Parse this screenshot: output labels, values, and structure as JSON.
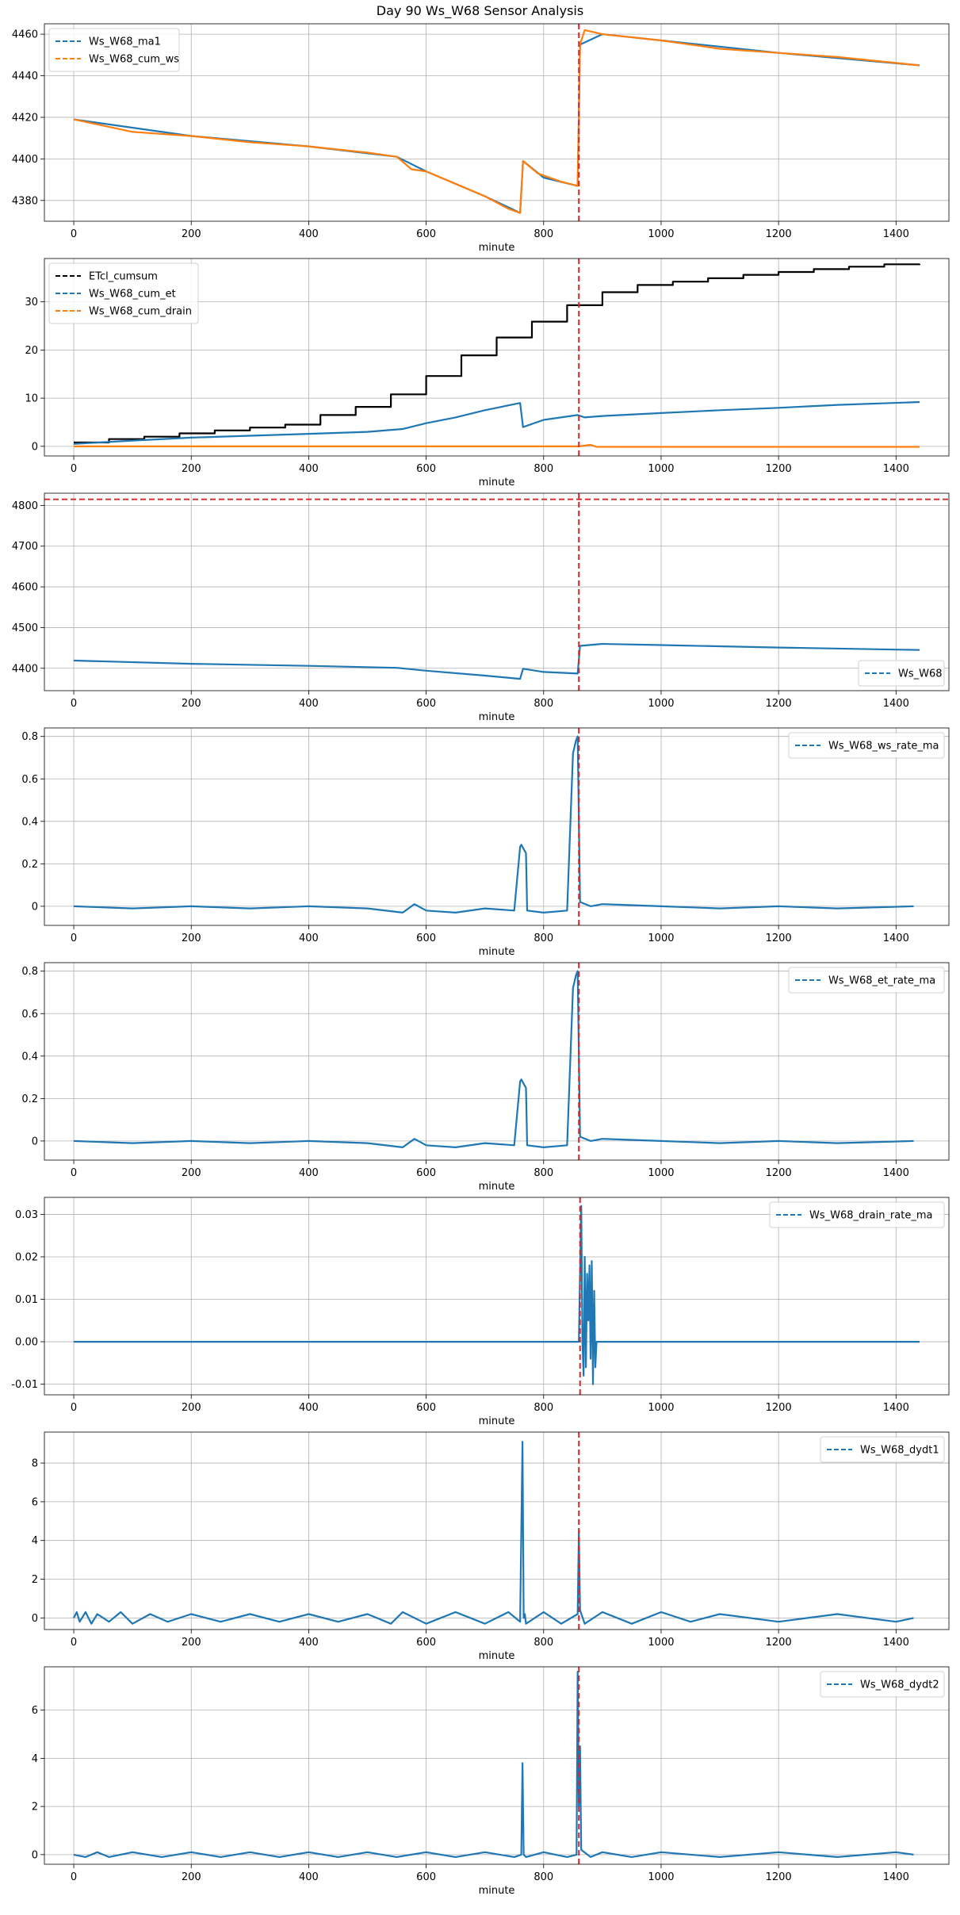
{
  "figure": {
    "title": "Day 90 Ws_W68 Sensor Analysis"
  },
  "chart_data": [
    {
      "type": "line",
      "xlabel": "minute",
      "ylabel": "",
      "xlim": [
        -50,
        1490
      ],
      "ylim": [
        4370,
        4465
      ],
      "xticks": [
        0,
        200,
        400,
        600,
        800,
        1000,
        1200,
        1400
      ],
      "yticks": [
        4380,
        4400,
        4420,
        4440,
        4460
      ],
      "grid": true,
      "legend_loc": "upper-left",
      "vlines": [
        {
          "x": 860,
          "color": "#d62728"
        }
      ],
      "hlines": [],
      "series": [
        {
          "name": "Ws_W68_ma1",
          "color": "#1f77b4",
          "style": "dashed",
          "x": [
            0,
            200,
            400,
            550,
            600,
            700,
            760,
            765,
            800,
            858,
            862,
            900,
            1000,
            1200,
            1440
          ],
          "y": [
            4419,
            4411,
            4406,
            4401,
            4394,
            4382,
            4374,
            4399,
            4391,
            4387,
            4455,
            4460,
            4457,
            4451,
            4445
          ]
        },
        {
          "name": "Ws_W68_cum_ws",
          "color": "#ff7f0e",
          "style": "dashed",
          "x": [
            0,
            50,
            100,
            200,
            300,
            400,
            500,
            550,
            575,
            600,
            650,
            700,
            740,
            760,
            765,
            790,
            830,
            858,
            862,
            870,
            900,
            1000,
            1100,
            1200,
            1300,
            1440
          ],
          "y": [
            4419,
            4416,
            4413,
            4411,
            4408,
            4406,
            4403,
            4401,
            4395,
            4394,
            4388,
            4382,
            4376,
            4374,
            4399,
            4393,
            4389,
            4387,
            4455,
            4462,
            4460,
            4457,
            4453,
            4451,
            4449,
            4445
          ]
        }
      ]
    },
    {
      "type": "line",
      "xlabel": "minute",
      "ylabel": "",
      "xlim": [
        -50,
        1490
      ],
      "ylim": [
        -2,
        39
      ],
      "xticks": [
        0,
        200,
        400,
        600,
        800,
        1000,
        1200,
        1400
      ],
      "yticks": [
        0,
        10,
        20,
        30
      ],
      "grid": true,
      "legend_loc": "upper-left",
      "vlines": [
        {
          "x": 860,
          "color": "#d62728"
        }
      ],
      "hlines": [],
      "series": [
        {
          "name": "ETcl_cumsum",
          "color": "#000000",
          "style": "dashed",
          "step": true,
          "x": [
            0,
            60,
            120,
            180,
            240,
            300,
            360,
            420,
            480,
            540,
            600,
            660,
            720,
            780,
            840,
            900,
            960,
            1020,
            1080,
            1140,
            1200,
            1260,
            1320,
            1380,
            1440
          ],
          "y": [
            0.8,
            1.5,
            2.0,
            2.7,
            3.3,
            3.9,
            4.5,
            6.5,
            8.2,
            10.8,
            14.6,
            18.9,
            22.6,
            25.9,
            29.3,
            32.0,
            33.5,
            34.2,
            34.9,
            35.6,
            36.2,
            36.8,
            37.3,
            37.8,
            37.9
          ]
        },
        {
          "name": "Ws_W68_cum_et",
          "color": "#1f77b4",
          "style": "dashed",
          "x": [
            0,
            100,
            200,
            300,
            400,
            500,
            560,
            600,
            650,
            700,
            760,
            765,
            800,
            858,
            870,
            900,
            1000,
            1100,
            1200,
            1300,
            1440
          ],
          "y": [
            0.5,
            1.2,
            1.8,
            2.2,
            2.6,
            3.0,
            3.6,
            4.8,
            6.0,
            7.5,
            9.0,
            4.0,
            5.5,
            6.5,
            6.0,
            6.3,
            6.9,
            7.5,
            8.0,
            8.6,
            9.2
          ]
        },
        {
          "name": "Ws_W68_cum_drain",
          "color": "#ff7f0e",
          "style": "dashed",
          "x": [
            0,
            860,
            880,
            890,
            1440
          ],
          "y": [
            0.0,
            0.0,
            0.3,
            -0.1,
            -0.1
          ]
        }
      ]
    },
    {
      "type": "line",
      "xlabel": "minute",
      "ylabel": "",
      "xlim": [
        -50,
        1490
      ],
      "ylim": [
        4345,
        4830
      ],
      "xticks": [
        0,
        200,
        400,
        600,
        800,
        1000,
        1200,
        1400
      ],
      "yticks": [
        4400,
        4500,
        4600,
        4700,
        4800
      ],
      "grid": true,
      "legend_loc": "lower-right",
      "vlines": [
        {
          "x": 860,
          "color": "#d62728"
        }
      ],
      "hlines": [
        {
          "y": 4815,
          "color": "#d62728"
        }
      ],
      "series": [
        {
          "name": "Ws_W68",
          "color": "#1f77b4",
          "style": "dashed",
          "x": [
            0,
            200,
            400,
            550,
            600,
            700,
            760,
            765,
            800,
            858,
            862,
            900,
            1000,
            1200,
            1440
          ],
          "y": [
            4419,
            4411,
            4406,
            4401,
            4394,
            4382,
            4374,
            4399,
            4391,
            4387,
            4455,
            4460,
            4457,
            4451,
            4445
          ]
        }
      ]
    },
    {
      "type": "line",
      "xlabel": "minute",
      "ylabel": "",
      "xlim": [
        -50,
        1490
      ],
      "ylim": [
        -0.09,
        0.84
      ],
      "xticks": [
        0,
        200,
        400,
        600,
        800,
        1000,
        1200,
        1400
      ],
      "yticks": [
        0.0,
        0.2,
        0.4,
        0.6,
        0.8
      ],
      "grid": true,
      "legend_loc": "upper-right",
      "vlines": [
        {
          "x": 860,
          "color": "#d62728"
        }
      ],
      "hlines": [],
      "series": [
        {
          "name": "Ws_W68_ws_rate_ma",
          "color": "#1f77b4",
          "style": "dashed",
          "x": [
            0,
            100,
            200,
            300,
            400,
            500,
            560,
            580,
            600,
            650,
            700,
            750,
            760,
            762,
            770,
            772,
            800,
            840,
            850,
            855,
            858,
            862,
            880,
            900,
            1000,
            1100,
            1200,
            1300,
            1430
          ],
          "y": [
            0.0,
            -0.01,
            0.0,
            -0.01,
            0.0,
            -0.01,
            -0.03,
            0.01,
            -0.02,
            -0.03,
            -0.01,
            -0.02,
            0.28,
            0.29,
            0.25,
            -0.02,
            -0.03,
            -0.02,
            0.72,
            0.78,
            0.8,
            0.02,
            0.0,
            0.01,
            0.0,
            -0.01,
            0.0,
            -0.01,
            0.0
          ]
        }
      ]
    },
    {
      "type": "line",
      "xlabel": "minute",
      "ylabel": "",
      "xlim": [
        -50,
        1490
      ],
      "ylim": [
        -0.09,
        0.84
      ],
      "xticks": [
        0,
        200,
        400,
        600,
        800,
        1000,
        1200,
        1400
      ],
      "yticks": [
        0.0,
        0.2,
        0.4,
        0.6,
        0.8
      ],
      "grid": true,
      "legend_loc": "upper-right",
      "vlines": [
        {
          "x": 860,
          "color": "#d62728"
        }
      ],
      "hlines": [],
      "series": [
        {
          "name": "Ws_W68_et_rate_ma",
          "color": "#1f77b4",
          "style": "dashed",
          "x": [
            0,
            100,
            200,
            300,
            400,
            500,
            560,
            580,
            600,
            650,
            700,
            750,
            760,
            762,
            770,
            772,
            800,
            840,
            850,
            855,
            858,
            862,
            880,
            900,
            1000,
            1100,
            1200,
            1300,
            1430
          ],
          "y": [
            0.0,
            -0.01,
            0.0,
            -0.01,
            0.0,
            -0.01,
            -0.03,
            0.01,
            -0.02,
            -0.03,
            -0.01,
            -0.02,
            0.28,
            0.29,
            0.25,
            -0.02,
            -0.03,
            -0.02,
            0.72,
            0.78,
            0.8,
            0.02,
            0.0,
            0.01,
            0.0,
            -0.01,
            0.0,
            -0.01,
            0.0
          ]
        }
      ]
    },
    {
      "type": "line",
      "xlabel": "minute",
      "ylabel": "",
      "xlim": [
        -50,
        1490
      ],
      "ylim": [
        -0.0125,
        0.034
      ],
      "xticks": [
        0,
        200,
        400,
        600,
        800,
        1000,
        1200,
        1400
      ],
      "yticks": [
        -0.01,
        0.0,
        0.01,
        0.02,
        0.03
      ],
      "ytick_labels": [
        "-0.01",
        "0.00",
        "0.01",
        "0.02",
        "0.03"
      ],
      "grid": true,
      "legend_loc": "upper-right",
      "vlines": [
        {
          "x": 862,
          "color": "#d62728"
        }
      ],
      "hlines": [],
      "series": [
        {
          "name": "Ws_W68_drain_rate_ma",
          "color": "#1f77b4",
          "style": "dashed",
          "x": [
            0,
            860,
            864,
            866,
            868,
            870,
            872,
            874,
            876,
            878,
            880,
            882,
            884,
            886,
            888,
            890,
            892,
            900,
            1440
          ],
          "y": [
            0.0,
            0.0,
            0.032,
            0.0,
            -0.008,
            0.02,
            -0.006,
            0.016,
            0.005,
            0.018,
            -0.004,
            0.019,
            -0.01,
            0.012,
            -0.006,
            0.0,
            0.0,
            0.0,
            0.0
          ]
        }
      ]
    },
    {
      "type": "line",
      "xlabel": "minute",
      "ylabel": "",
      "xlim": [
        -50,
        1490
      ],
      "ylim": [
        -0.6,
        9.6
      ],
      "xticks": [
        0,
        200,
        400,
        600,
        800,
        1000,
        1200,
        1400
      ],
      "yticks": [
        0,
        2,
        4,
        6,
        8
      ],
      "grid": true,
      "legend_loc": "upper-right",
      "vlines": [
        {
          "x": 860,
          "color": "#d62728"
        }
      ],
      "hlines": [],
      "series": [
        {
          "name": "Ws_W68_dydt1",
          "color": "#1f77b4",
          "style": "dashed",
          "x": [
            0,
            5,
            10,
            20,
            30,
            40,
            60,
            80,
            100,
            130,
            160,
            200,
            250,
            300,
            350,
            400,
            450,
            500,
            540,
            560,
            600,
            650,
            700,
            740,
            760,
            764,
            766,
            768,
            770,
            800,
            830,
            858,
            860,
            862,
            870,
            900,
            950,
            1000,
            1050,
            1100,
            1200,
            1300,
            1400,
            1430
          ],
          "y": [
            0.0,
            0.3,
            -0.2,
            0.3,
            -0.3,
            0.2,
            -0.2,
            0.3,
            -0.3,
            0.2,
            -0.2,
            0.2,
            -0.2,
            0.2,
            -0.2,
            0.2,
            -0.2,
            0.2,
            -0.3,
            0.3,
            -0.3,
            0.3,
            -0.3,
            0.3,
            -0.2,
            9.1,
            0.0,
            0.2,
            -0.3,
            0.3,
            -0.3,
            0.2,
            4.5,
            0.4,
            -0.3,
            0.3,
            -0.3,
            0.3,
            -0.2,
            0.2,
            -0.2,
            0.2,
            -0.2,
            0.0
          ]
        }
      ]
    },
    {
      "type": "line",
      "xlabel": "minute",
      "ylabel": "",
      "xlim": [
        -50,
        1490
      ],
      "ylim": [
        -0.4,
        7.8
      ],
      "xticks": [
        0,
        200,
        400,
        600,
        800,
        1000,
        1200,
        1400
      ],
      "yticks": [
        0,
        2,
        4,
        6
      ],
      "grid": true,
      "legend_loc": "upper-right",
      "vlines": [
        {
          "x": 860,
          "color": "#d62728"
        }
      ],
      "hlines": [],
      "series": [
        {
          "name": "Ws_W68_dydt2",
          "color": "#1f77b4",
          "style": "dashed",
          "x": [
            0,
            20,
            40,
            60,
            100,
            150,
            200,
            250,
            300,
            350,
            400,
            450,
            500,
            550,
            600,
            650,
            700,
            750,
            762,
            764,
            766,
            770,
            800,
            840,
            856,
            858,
            860,
            862,
            864,
            880,
            900,
            950,
            1000,
            1100,
            1200,
            1300,
            1400,
            1430
          ],
          "y": [
            0.0,
            -0.1,
            0.1,
            -0.1,
            0.1,
            -0.1,
            0.1,
            -0.1,
            0.1,
            -0.1,
            0.1,
            -0.1,
            0.1,
            -0.1,
            0.1,
            -0.1,
            0.1,
            -0.1,
            0.0,
            3.8,
            0.0,
            -0.1,
            0.1,
            -0.1,
            0.0,
            7.6,
            2.0,
            4.5,
            0.2,
            -0.1,
            0.1,
            -0.1,
            0.1,
            -0.1,
            0.1,
            -0.1,
            0.1,
            0.0
          ]
        }
      ]
    }
  ]
}
